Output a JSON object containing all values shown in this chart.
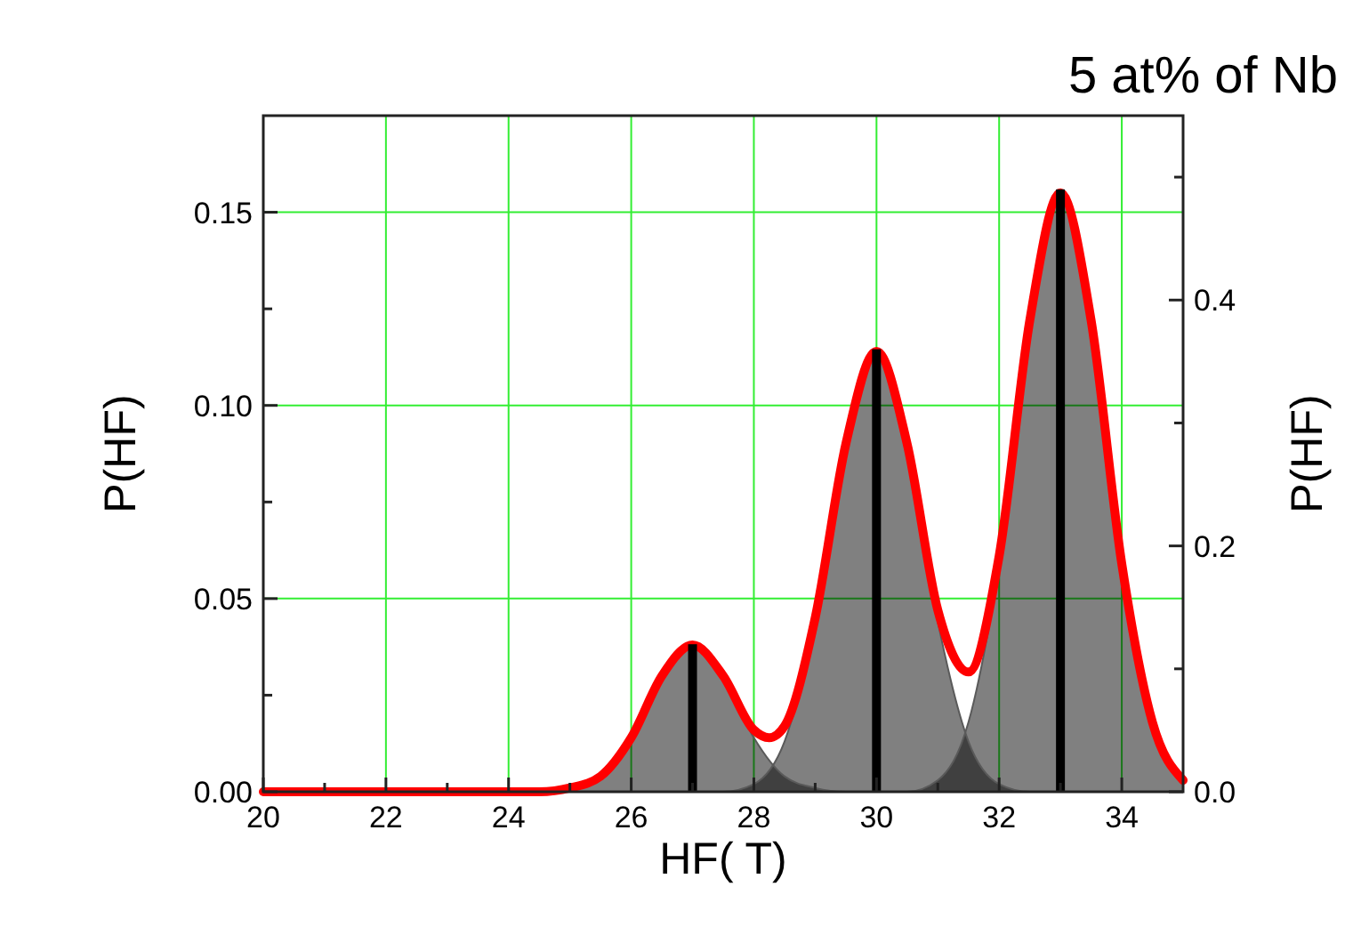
{
  "chart_data": {
    "type": "area",
    "title": "5 at% of Nb",
    "xlabel": "HF( T)",
    "ylabel": "P(HF)",
    "y2label": "P(HF)",
    "xlim": [
      20,
      35
    ],
    "xticks": [
      20,
      {
        "value": 21,
        "label": null
      },
      22,
      {
        "value": 23,
        "label": null
      },
      24,
      {
        "value": 25,
        "label": null
      },
      26,
      {
        "value": 27,
        "label": null
      },
      28,
      {
        "value": 29,
        "label": null
      },
      30,
      {
        "value": 31,
        "label": null
      },
      32,
      {
        "value": 33,
        "label": null
      },
      34
    ],
    "ylim": [
      0,
      0.175
    ],
    "yticks": [
      {
        "value": 0,
        "label": "0.00"
      },
      {
        "value": 0.025,
        "label": null
      },
      {
        "value": 0.05,
        "label": "0.05"
      },
      {
        "value": 0.075,
        "label": null
      },
      {
        "value": 0.1,
        "label": "0.10"
      },
      {
        "value": 0.125,
        "label": null
      },
      {
        "value": 0.15,
        "label": "0.15"
      }
    ],
    "y2lim": [
      0,
      0.55
    ],
    "y2ticks": [
      {
        "value": 0,
        "label": "0.0"
      },
      {
        "value": 0.1,
        "label": null
      },
      {
        "value": 0.2,
        "label": "0.2"
      },
      {
        "value": 0.3,
        "label": null
      },
      {
        "value": 0.4,
        "label": "0.4"
      },
      {
        "value": 0.5,
        "label": null
      }
    ],
    "grid": true,
    "series": [
      {
        "color": "#808080",
        "x": [
          24,
          24.5,
          25,
          25.5,
          26,
          26.5,
          27,
          27.5,
          28,
          28.5,
          29,
          29.5,
          30
        ],
        "values": [
          0,
          0,
          0.001,
          0.004,
          0.014,
          0.03,
          0.038,
          0.03,
          0.014,
          0.004,
          0.001,
          0,
          0
        ]
      },
      {
        "color": "#808080",
        "x": [
          27,
          27.5,
          28,
          28.5,
          29,
          29.5,
          30,
          30.5,
          31,
          31.5,
          32,
          32.5,
          33
        ],
        "values": [
          0,
          0,
          0.002,
          0.013,
          0.044,
          0.09,
          0.114,
          0.09,
          0.044,
          0.013,
          0.002,
          0,
          0
        ]
      },
      {
        "color": "#808080",
        "x": [
          30,
          30.5,
          31,
          31.5,
          32,
          32.5,
          33,
          33.5,
          34,
          34.5,
          35
        ],
        "values": [
          0,
          0,
          0.003,
          0.018,
          0.059,
          0.122,
          0.155,
          0.122,
          0.059,
          0.018,
          0.003
        ]
      },
      {
        "type": "line",
        "color": "#ff0000",
        "x": [
          20,
          24,
          24.5,
          25,
          25.5,
          26,
          26.5,
          27,
          27.5,
          28,
          28.25,
          28.5,
          29,
          29.5,
          30,
          30.5,
          31,
          31.5,
          32,
          32.5,
          33,
          33.5,
          34,
          34.5,
          35
        ],
        "values": [
          0,
          0,
          0,
          0.001,
          0.004,
          0.014,
          0.03,
          0.038,
          0.03,
          0.016,
          0.014,
          0.017,
          0.045,
          0.09,
          0.114,
          0.09,
          0.047,
          0.031,
          0.061,
          0.122,
          0.155,
          0.122,
          0.059,
          0.018,
          0.003
        ]
      },
      {
        "type": "bar",
        "axis": "y2",
        "color": "#000000",
        "x": [
          27,
          30,
          33
        ],
        "values": [
          0.12,
          0.36,
          0.49
        ]
      }
    ]
  }
}
